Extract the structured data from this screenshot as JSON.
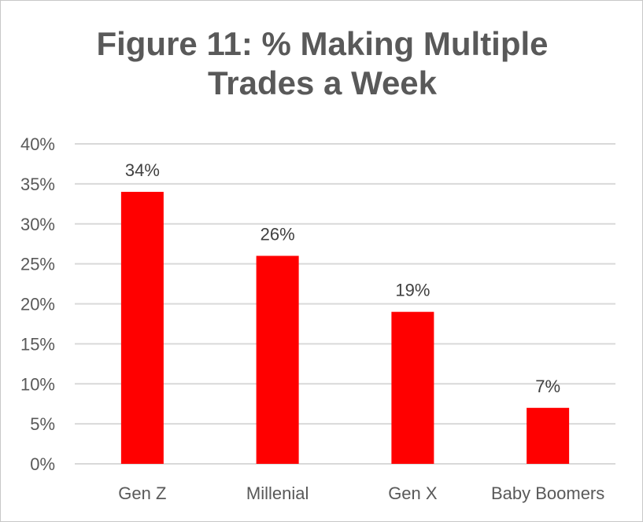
{
  "chart_data": {
    "type": "bar",
    "title_lines": [
      "Figure 11: % Making Multiple",
      "Trades a Week"
    ],
    "categories": [
      "Gen Z",
      "Millenial",
      "Gen X",
      "Baby Boomers"
    ],
    "values": [
      34,
      26,
      19,
      7
    ],
    "data_labels": [
      "34%",
      "26%",
      "19%",
      "7%"
    ],
    "ylim": [
      0,
      40
    ],
    "y_ticks": [
      0,
      5,
      10,
      15,
      20,
      25,
      30,
      35,
      40
    ],
    "y_tick_labels": [
      "0%",
      "5%",
      "10%",
      "15%",
      "20%",
      "25%",
      "30%",
      "35%",
      "40%"
    ],
    "grid": true,
    "legend": "none",
    "bar_color": "#ff0000",
    "grid_color": "#d9d9d9"
  }
}
